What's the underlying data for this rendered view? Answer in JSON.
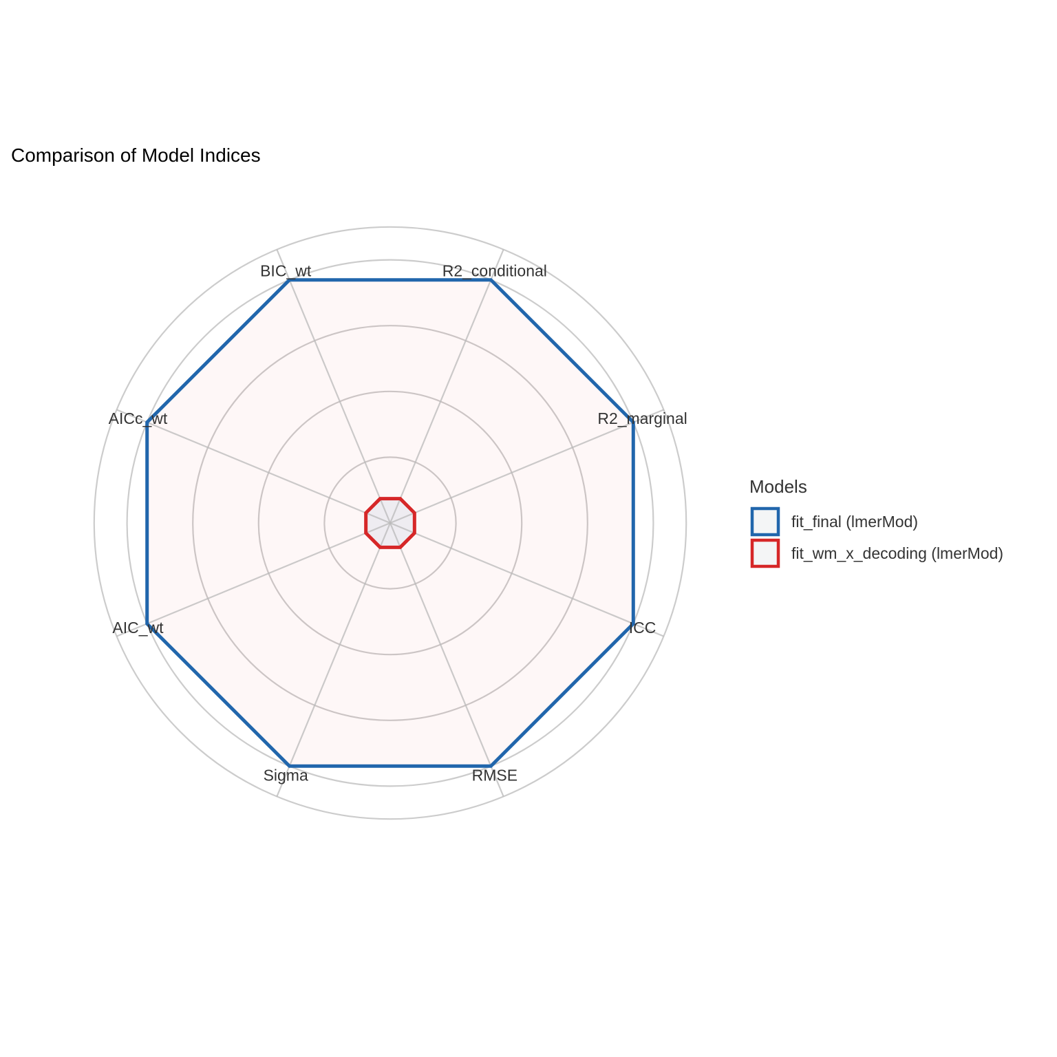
{
  "chart_data": {
    "type": "radar",
    "title": "Comparison of Model Indices",
    "axes": [
      "R2_conditional",
      "R2_marginal",
      "ICC",
      "RMSE",
      "Sigma",
      "AIC_wt",
      "AICc_wt",
      "BIC_wt"
    ],
    "rlim": [
      0,
      1
    ],
    "grid_levels": [
      0.2,
      0.4,
      0.6,
      0.8,
      0.9
    ],
    "grid": true,
    "series": [
      {
        "name": "fit_final (lmerMod)",
        "values": [
          0.8,
          0.8,
          0.8,
          0.8,
          0.8,
          0.8,
          0.8,
          0.8
        ],
        "color": "#2166ac"
      },
      {
        "name": "fit_wm_x_decoding (lmerMod)",
        "values": [
          0.08,
          0.08,
          0.08,
          0.08,
          0.08,
          0.08,
          0.08,
          0.08
        ],
        "color": "#d62728"
      }
    ],
    "legend": {
      "title": "Models",
      "position": "right"
    }
  }
}
